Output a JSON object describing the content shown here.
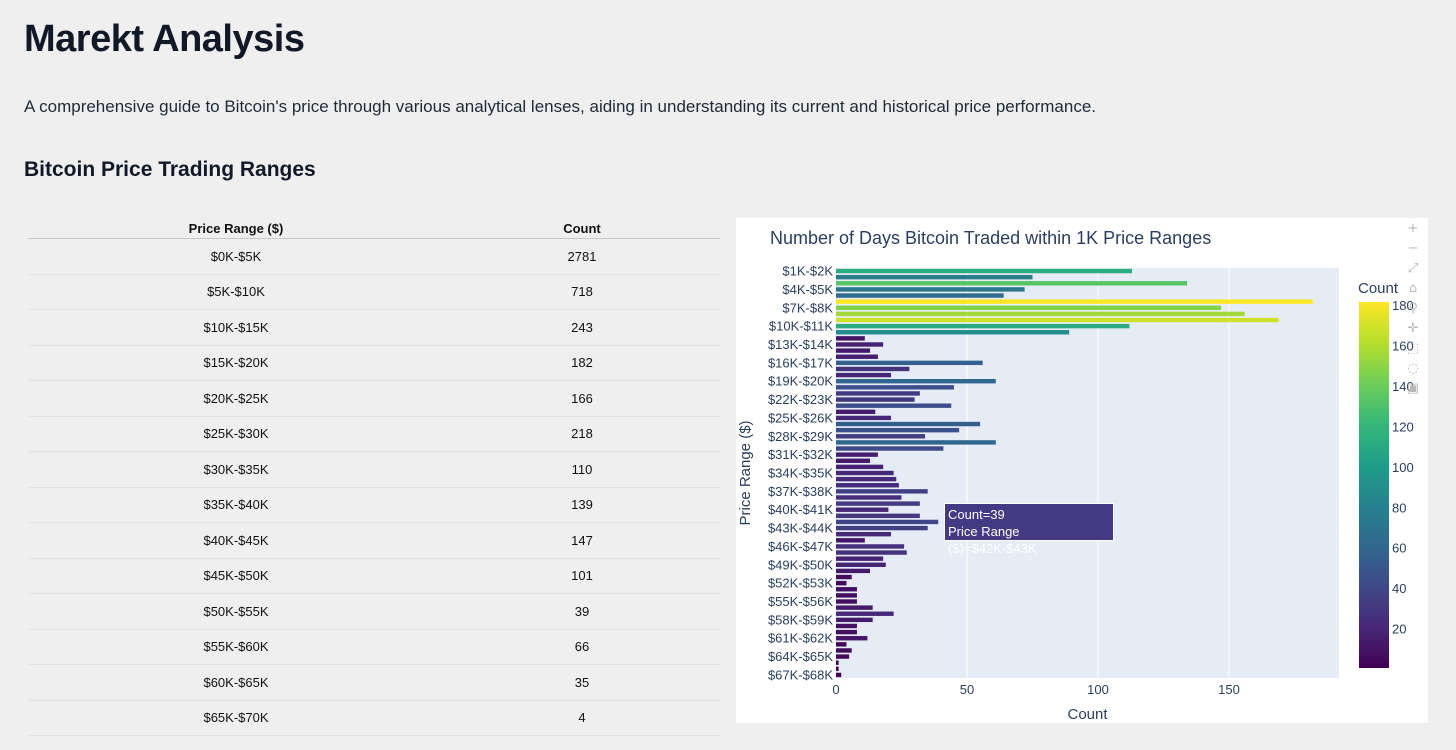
{
  "page": {
    "title": "Marekt Analysis",
    "subtitle": "A comprehensive guide to Bitcoin's price through various analytical lenses, aiding in understanding its current and historical price performance.",
    "section_heading": "Bitcoin Price Trading Ranges"
  },
  "table": {
    "headers": [
      "Price Range ($)",
      "Count"
    ],
    "rows": [
      [
        "$0K-$5K",
        "2781"
      ],
      [
        "$5K-$10K",
        "718"
      ],
      [
        "$10K-$15K",
        "243"
      ],
      [
        "$15K-$20K",
        "182"
      ],
      [
        "$20K-$25K",
        "166"
      ],
      [
        "$25K-$30K",
        "218"
      ],
      [
        "$30K-$35K",
        "110"
      ],
      [
        "$35K-$40K",
        "139"
      ],
      [
        "$40K-$45K",
        "147"
      ],
      [
        "$45K-$50K",
        "101"
      ],
      [
        "$50K-$55K",
        "39"
      ],
      [
        "$55K-$60K",
        "66"
      ],
      [
        "$60K-$65K",
        "35"
      ],
      [
        "$65K-$70K",
        "4"
      ]
    ]
  },
  "chart_data": {
    "type": "bar",
    "orientation": "horizontal",
    "title": "Number of Days Bitcoin Traded within 1K Price Ranges",
    "xlabel": "Count",
    "ylabel": "Price Range ($)",
    "xlim": [
      0,
      192
    ],
    "x_ticks": [
      0,
      50,
      100,
      150
    ],
    "categories": [
      "$1K-$2K",
      "$2K-$3K",
      "$3K-$4K",
      "$4K-$5K",
      "$5K-$6K",
      "$6K-$7K",
      "$7K-$8K",
      "$8K-$9K",
      "$9K-$10K",
      "$10K-$11K",
      "$11K-$12K",
      "$12K-$13K",
      "$13K-$14K",
      "$14K-$15K",
      "$15K-$16K",
      "$16K-$17K",
      "$17K-$18K",
      "$18K-$19K",
      "$19K-$20K",
      "$20K-$21K",
      "$21K-$22K",
      "$22K-$23K",
      "$23K-$24K",
      "$24K-$25K",
      "$25K-$26K",
      "$26K-$27K",
      "$27K-$28K",
      "$28K-$29K",
      "$29K-$30K",
      "$30K-$31K",
      "$31K-$32K",
      "$32K-$33K",
      "$33K-$34K",
      "$34K-$35K",
      "$35K-$36K",
      "$36K-$37K",
      "$37K-$38K",
      "$38K-$39K",
      "$39K-$40K",
      "$40K-$41K",
      "$41K-$42K",
      "$42K-$43K",
      "$43K-$44K",
      "$44K-$45K",
      "$45K-$46K",
      "$46K-$47K",
      "$47K-$48K",
      "$48K-$49K",
      "$49K-$50K",
      "$50K-$51K",
      "$51K-$52K",
      "$52K-$53K",
      "$53K-$54K",
      "$54K-$55K",
      "$55K-$56K",
      "$56K-$57K",
      "$57K-$58K",
      "$58K-$59K",
      "$59K-$60K",
      "$60K-$61K",
      "$61K-$62K",
      "$62K-$63K",
      "$63K-$64K",
      "$64K-$65K",
      "$65K-$66K",
      "$66K-$67K",
      "$67K-$68K"
    ],
    "y_tick_labels": [
      "$1K-$2K",
      "$4K-$5K",
      "$7K-$8K",
      "$10K-$11K",
      "$13K-$14K",
      "$16K-$17K",
      "$19K-$20K",
      "$22K-$23K",
      "$25K-$26K",
      "$28K-$29K",
      "$31K-$32K",
      "$34K-$35K",
      "$37K-$38K",
      "$40K-$41K",
      "$43K-$44K",
      "$46K-$47K",
      "$49K-$50K",
      "$52K-$53K",
      "$55K-$56K",
      "$58K-$59K",
      "$61K-$62K",
      "$64K-$65K",
      "$67K-$68K"
    ],
    "values": [
      113,
      75,
      134,
      72,
      64,
      182,
      147,
      156,
      169,
      112,
      89,
      11,
      18,
      13,
      16,
      56,
      28,
      21,
      61,
      45,
      32,
      30,
      44,
      15,
      21,
      55,
      47,
      34,
      61,
      41,
      16,
      13,
      18,
      22,
      23,
      24,
      35,
      25,
      32,
      20,
      32,
      39,
      35,
      21,
      11,
      26,
      27,
      18,
      19,
      13,
      6,
      4,
      8,
      8,
      8,
      14,
      22,
      14,
      8,
      8,
      12,
      4,
      6,
      5,
      1,
      1,
      2
    ],
    "colorbar": {
      "title": "Count",
      "ticks": [
        20,
        40,
        60,
        80,
        100,
        120,
        140,
        160,
        180
      ],
      "range": [
        1,
        182
      ],
      "colorscale": "Viridis"
    },
    "hover": {
      "line1": "Count=39",
      "line2": "Price Range ($)=$42K-$43K"
    },
    "plot_bg": "#e5ecf6",
    "title_color": "#2a3f5f"
  },
  "modebar": {
    "icons": [
      "zoom-in-icon",
      "zoom-out-icon",
      "autoscale-icon",
      "home-icon",
      "zoom-icon",
      "pan-icon",
      "box-select-icon",
      "lasso-icon",
      "camera-icon"
    ]
  }
}
